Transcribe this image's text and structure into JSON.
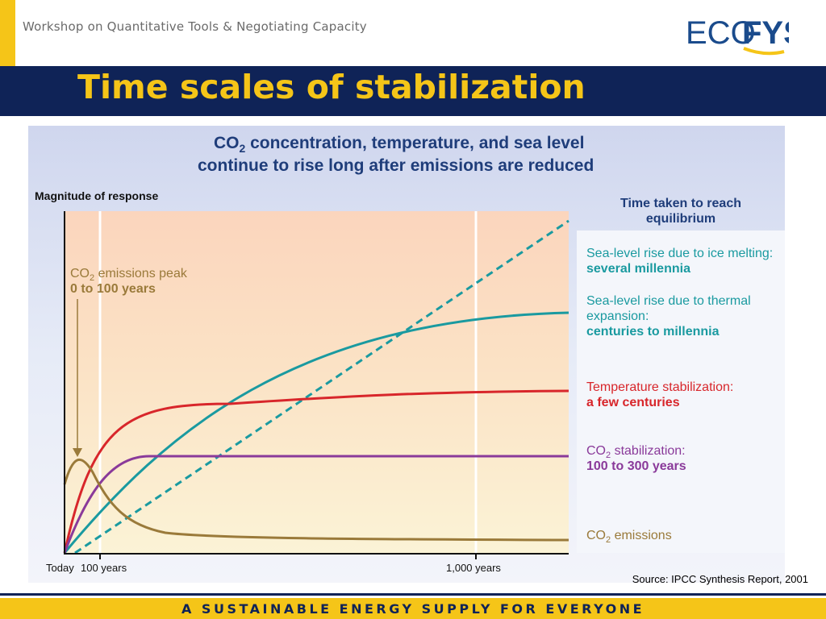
{
  "header": {
    "workshop": "Workshop on Quantitative Tools & Negotiating Capacity",
    "logo_left": "ECO",
    "logo_right": "FYS"
  },
  "title": "Time scales of stabilization",
  "figure": {
    "heading_line1_pre": "CO",
    "heading_line1_sub": "2",
    "heading_line1_post": " concentration, temperature, and sea level",
    "heading_line2": "continue to rise long after emissions are reduced",
    "ylabel": "Magnitude of response",
    "right_heading_line1": "Time taken to reach",
    "right_heading_line2": "equilibrium",
    "peak_label_pre": "CO",
    "peak_label_sub": "2",
    "peak_label_post": " emissions peak",
    "peak_value": "0 to 100 years",
    "x_ticks": [
      "Today",
      "100 years",
      "1,000  years"
    ],
    "labels": {
      "ice_line1": "Sea-level rise due to ice melting:",
      "ice_value": "several millennia",
      "thermal_line1": "Sea-level rise due to thermal",
      "thermal_line2": "expansion:",
      "thermal_value": "centuries to millennia",
      "temp_line1": "Temperature stabilization:",
      "temp_value": "a few centuries",
      "co2stab_pre": "CO",
      "co2stab_sub": "2",
      "co2stab_post": " stabilization:",
      "co2stab_value": "100 to 300 years",
      "emis_pre": "CO",
      "emis_sub": "2",
      "emis_post": " emissions"
    },
    "colors": {
      "ice": "#1a9aa0",
      "thermal": "#1a9aa0",
      "temperature": "#d8262b",
      "co2_stabilization": "#8a3a9a",
      "co2_emissions": "#9a7a3a",
      "peak_text": "#9a7a3a"
    }
  },
  "source": "Source: IPCC Synthesis Report, 2001",
  "footer": "A SUSTAINABLE ENERGY SUPPLY FOR EVERYONE"
}
